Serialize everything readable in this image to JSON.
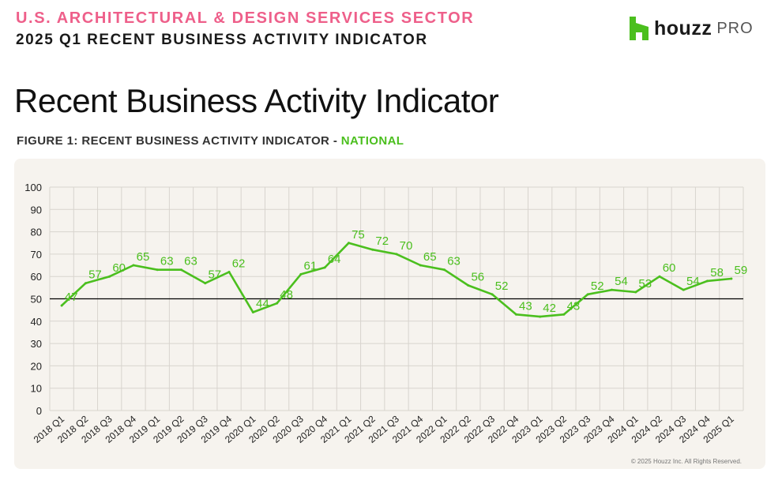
{
  "header": {
    "sector": "U.S. ARCHITECTURAL & DESIGN SERVICES SECTOR",
    "report": "2025 Q1 RECENT BUSINESS ACTIVITY INDICATOR"
  },
  "logo": {
    "icon": "houzz-logo-icon",
    "word": "houzz",
    "suffix": "PRO",
    "color": "#4bbf1e"
  },
  "page_title": "Recent Business Activity Indicator",
  "figure": {
    "caption_prefix": "FIGURE 1: RECENT BUSINESS ACTIVITY INDICATOR - ",
    "caption_highlight": "NATIONAL"
  },
  "chart_data": {
    "type": "line",
    "categories": [
      "2018 Q1",
      "2018 Q2",
      "2018 Q3",
      "2018 Q4",
      "2019 Q1",
      "2019 Q2",
      "2019 Q3",
      "2019 Q4",
      "2020 Q1",
      "2020 Q2",
      "2020 Q3",
      "2020 Q4",
      "2021 Q1",
      "2021 Q2",
      "2021 Q3",
      "2021 Q4",
      "2022 Q1",
      "2022 Q2",
      "2022 Q3",
      "2022 Q4",
      "2023 Q1",
      "2023 Q2",
      "2023 Q3",
      "2023 Q4",
      "2024 Q1",
      "2024 Q2",
      "2024 Q3",
      "2024 Q4",
      "2025 Q1"
    ],
    "series": [
      {
        "values": [
          47,
          57,
          60,
          65,
          63,
          63,
          57,
          62,
          44,
          48,
          61,
          64,
          75,
          72,
          70,
          65,
          63,
          56,
          52,
          43,
          42,
          43,
          52,
          54,
          53,
          60,
          54,
          58,
          59
        ],
        "color": "#4bbf1e"
      }
    ],
    "ylim": [
      0,
      100
    ],
    "yticks": [
      0,
      10,
      20,
      30,
      40,
      50,
      60,
      70,
      80,
      90,
      100
    ],
    "reference_line": 50,
    "grid": true,
    "data_labels": true,
    "colors": {
      "line": "#4bbf1e",
      "grid": "#d8d4ce",
      "reference": "#000000",
      "axis_text": "#222222"
    }
  },
  "footer": {
    "copyright": "© 2025 Houzz Inc. All Rights Reserved."
  }
}
